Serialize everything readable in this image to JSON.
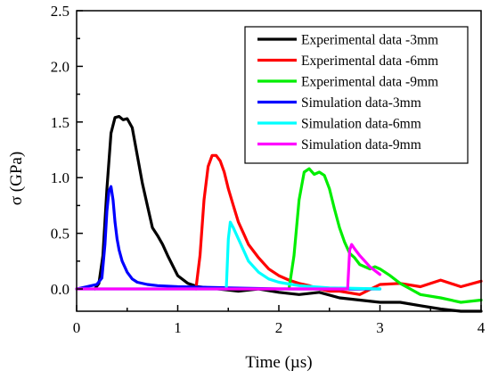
{
  "chart_data": {
    "type": "line",
    "title": "",
    "xlabel": "Time  (µs)",
    "ylabel": "σ  (GPa)",
    "xlim": [
      0,
      4
    ],
    "ylim": [
      -0.2,
      2.5
    ],
    "x_ticks": [
      0,
      1,
      2,
      3,
      4
    ],
    "x_tick_labels": [
      "0",
      "1",
      "2",
      "3",
      "4"
    ],
    "y_ticks": [
      0.0,
      0.5,
      1.0,
      1.5,
      2.0,
      2.5
    ],
    "y_tick_labels": [
      "0.0",
      "0.5",
      "1.0",
      "1.5",
      "2.0",
      "2.5"
    ],
    "grid": false,
    "legend_position": "top-right",
    "series": [
      {
        "name": "Experimental data -3mm",
        "color": "#000000",
        "x": [
          0.18,
          0.22,
          0.26,
          0.3,
          0.34,
          0.38,
          0.42,
          0.46,
          0.5,
          0.55,
          0.6,
          0.65,
          0.7,
          0.75,
          0.8,
          0.85,
          0.9,
          1.0,
          1.1,
          1.2,
          1.4,
          1.6,
          1.8,
          2.0,
          2.2,
          2.4,
          2.6,
          2.8,
          3.0,
          3.2,
          3.4,
          3.6,
          3.8,
          4.0
        ],
        "y": [
          0.0,
          0.05,
          0.3,
          0.9,
          1.4,
          1.54,
          1.55,
          1.52,
          1.53,
          1.45,
          1.2,
          0.95,
          0.75,
          0.55,
          0.48,
          0.4,
          0.3,
          0.12,
          0.05,
          0.02,
          0.0,
          -0.02,
          0.0,
          -0.03,
          -0.05,
          -0.03,
          -0.08,
          -0.1,
          -0.12,
          -0.12,
          -0.15,
          -0.18,
          -0.2,
          -0.2
        ]
      },
      {
        "name": "Experimental data -6mm",
        "color": "#ff0000",
        "x": [
          1.18,
          1.22,
          1.26,
          1.3,
          1.34,
          1.38,
          1.42,
          1.46,
          1.5,
          1.55,
          1.6,
          1.65,
          1.7,
          1.8,
          1.9,
          2.0,
          2.1,
          2.2,
          2.3,
          2.4,
          2.5,
          2.6,
          2.8,
          3.0,
          3.2,
          3.4,
          3.6,
          3.8,
          4.0
        ],
        "y": [
          0.0,
          0.3,
          0.8,
          1.1,
          1.2,
          1.2,
          1.15,
          1.05,
          0.9,
          0.75,
          0.6,
          0.5,
          0.4,
          0.28,
          0.18,
          0.12,
          0.08,
          0.05,
          0.03,
          0.0,
          -0.02,
          -0.02,
          -0.05,
          0.04,
          0.05,
          0.02,
          0.08,
          0.02,
          0.07
        ]
      },
      {
        "name": "Experimental data -9mm",
        "color": "#00ee00",
        "x": [
          2.1,
          2.15,
          2.2,
          2.25,
          2.3,
          2.35,
          2.4,
          2.45,
          2.5,
          2.55,
          2.6,
          2.65,
          2.7,
          2.75,
          2.8,
          2.85,
          2.9,
          2.95,
          3.0,
          3.1,
          3.2,
          3.3,
          3.4,
          3.6,
          3.8,
          4.0
        ],
        "y": [
          0.0,
          0.3,
          0.8,
          1.05,
          1.08,
          1.03,
          1.05,
          1.02,
          0.9,
          0.72,
          0.55,
          0.42,
          0.32,
          0.28,
          0.22,
          0.2,
          0.18,
          0.2,
          0.18,
          0.12,
          0.05,
          0.0,
          -0.05,
          -0.08,
          -0.12,
          -0.1
        ]
      },
      {
        "name": "Simulation data-3mm",
        "color": "#0000ff",
        "x": [
          0.0,
          0.1,
          0.2,
          0.25,
          0.28,
          0.3,
          0.32,
          0.34,
          0.36,
          0.38,
          0.4,
          0.42,
          0.45,
          0.5,
          0.55,
          0.6,
          0.7,
          0.8,
          1.0,
          1.5,
          2.0,
          2.5,
          3.0
        ],
        "y": [
          0.0,
          0.02,
          0.04,
          0.1,
          0.4,
          0.7,
          0.88,
          0.92,
          0.8,
          0.6,
          0.45,
          0.35,
          0.25,
          0.15,
          0.09,
          0.06,
          0.04,
          0.03,
          0.02,
          0.01,
          0.0,
          0.0,
          0.0
        ]
      },
      {
        "name": "Simulation data-6mm",
        "color": "#00ffff",
        "x": [
          0.0,
          1.0,
          1.48,
          1.5,
          1.52,
          1.55,
          1.6,
          1.65,
          1.7,
          1.8,
          1.9,
          2.0,
          2.2,
          2.5,
          3.0
        ],
        "y": [
          0.0,
          0.0,
          0.0,
          0.45,
          0.6,
          0.55,
          0.45,
          0.35,
          0.25,
          0.15,
          0.09,
          0.06,
          0.03,
          0.01,
          0.0
        ]
      },
      {
        "name": "Simulation data-9mm",
        "color": "#ff00ff",
        "x": [
          0.0,
          1.0,
          2.0,
          2.68,
          2.7,
          2.72,
          2.75,
          2.8,
          2.85,
          2.9,
          3.0
        ],
        "y": [
          0.0,
          0.0,
          0.0,
          0.0,
          0.35,
          0.4,
          0.36,
          0.3,
          0.25,
          0.2,
          0.13
        ]
      }
    ]
  }
}
